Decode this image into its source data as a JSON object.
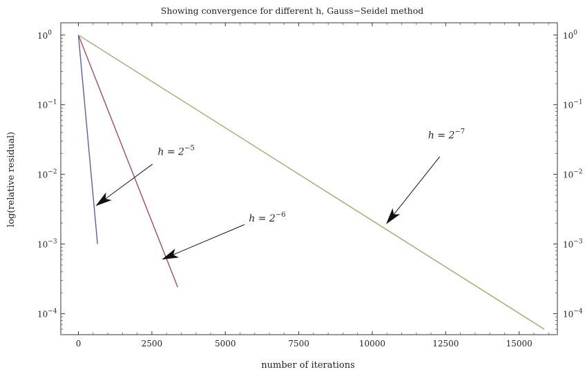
{
  "chart_data": {
    "type": "line",
    "title": "Showing convergence for different h, Gauss−Seidel method",
    "xlabel": "number of iterations",
    "ylabel": "log(relative residual)",
    "xlim": [
      -600,
      16300
    ],
    "ylim": [
      5e-05,
      1.5
    ],
    "yscale": "log",
    "grid": false,
    "x_ticks": [
      0,
      2500,
      5000,
      7500,
      10000,
      12500,
      15000
    ],
    "y_ticks": [
      {
        "value": 1,
        "exp": "0"
      },
      {
        "value": 0.1,
        "exp": "−1"
      },
      {
        "value": 0.01,
        "exp": "−2"
      },
      {
        "value": 0.001,
        "exp": "−3"
      },
      {
        "value": 0.0001,
        "exp": "−4"
      }
    ],
    "y_tick_base": "10",
    "series": [
      {
        "color": "#5b5ba8",
        "x": [
          0,
          650
        ],
        "y": [
          1.0,
          0.001
        ]
      },
      {
        "color": "#a8456b",
        "x": [
          0,
          3380
        ],
        "y": [
          1.0,
          0.00024
        ]
      },
      {
        "color": "#a8a86b",
        "x": [
          0,
          15850
        ],
        "y": [
          1.0,
          6e-05
        ]
      }
    ],
    "annotations": [
      {
        "name": "h-2-5",
        "prefix": "h = 2",
        "exp": "−5",
        "text_x": 2700,
        "text_y": 0.019,
        "arrow_from": [
          2520,
          0.014
        ],
        "arrow_to": [
          620,
          0.0036
        ]
      },
      {
        "name": "h-2-6",
        "prefix": "h = 2",
        "exp": "−6",
        "text_x": 5800,
        "text_y": 0.0021,
        "arrow_from": [
          5650,
          0.0019
        ],
        "arrow_to": [
          2880,
          0.00061
        ]
      },
      {
        "name": "h-2-7",
        "prefix": "h = 2",
        "exp": "−7",
        "text_x": 11900,
        "text_y": 0.033,
        "arrow_from": [
          12300,
          0.018
        ],
        "arrow_to": [
          10500,
          0.002
        ]
      }
    ]
  }
}
